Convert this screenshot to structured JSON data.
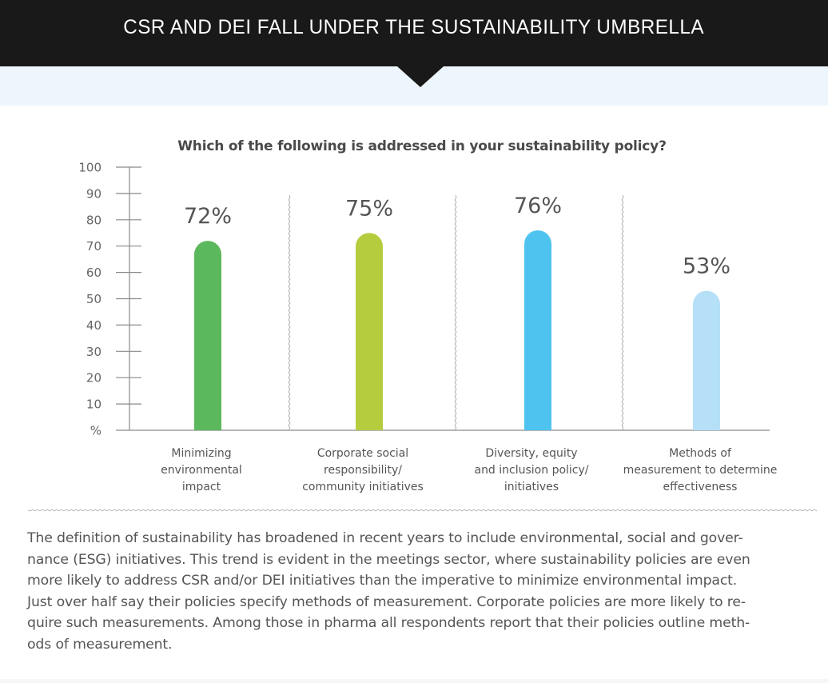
{
  "header": {
    "title": "CSR AND DEI FALL UNDER THE SUSTAINABILITY UMBRELLA"
  },
  "colors": {
    "header_bg": "#191919",
    "band_bg": "#ecf6fc",
    "bar_1": "#5cb85c",
    "bar_2": "#b5cc3e",
    "bar_3": "#4fc3f0",
    "bar_4": "#b6e0f8"
  },
  "chart_data": {
    "type": "bar",
    "title": "Which of the following is addressed in your sustainability policy?",
    "xlabel": "",
    "ylabel": "%",
    "ylim": [
      0,
      100
    ],
    "yticks": [
      10,
      20,
      30,
      40,
      50,
      60,
      70,
      80,
      90,
      100
    ],
    "ytick_labels": [
      "10",
      "20",
      "30",
      "40",
      "50",
      "60",
      "70",
      "80",
      "90",
      "100"
    ],
    "y_zero_label": "%",
    "grid": false,
    "categories": [
      "Minimizing environmental impact",
      "Corporate social responsibility/ community initiatives",
      "Diversity, equity and inclusion policy/ initiatives",
      "Methods of measurement to determine effectiveness"
    ],
    "category_lines": [
      [
        "Minimizing",
        "environmental",
        "impact"
      ],
      [
        "Corporate social",
        "responsibility/",
        "community initiatives"
      ],
      [
        "Diversity, equity",
        "and inclusion policy/",
        "initiatives"
      ],
      [
        "Methods of",
        "measurement to determine",
        "effectiveness"
      ]
    ],
    "values": [
      72,
      75,
      76,
      53
    ],
    "data_labels": [
      "72%",
      "75%",
      "76%",
      "53%"
    ],
    "bar_colors": [
      "#5cb85c",
      "#b5cc3e",
      "#4fc3f0",
      "#b6e0f8"
    ]
  },
  "body": {
    "paragraph_lines": [
      "The definition of sustainability has broadened in recent years to include environmental, social and gover-",
      "nance (ESG) initiatives. This trend is evident in the meetings sector, where sustainability policies are even",
      "more likely to address CSR and/or DEI initiatives than the imperative to minimize environmental impact.",
      "Just over half say their policies specify methods of measurement. Corporate policies are more likely to re-",
      "quire such measurements. Among those in pharma all respondents report that their policies outline meth-",
      "ods of measurement."
    ]
  }
}
